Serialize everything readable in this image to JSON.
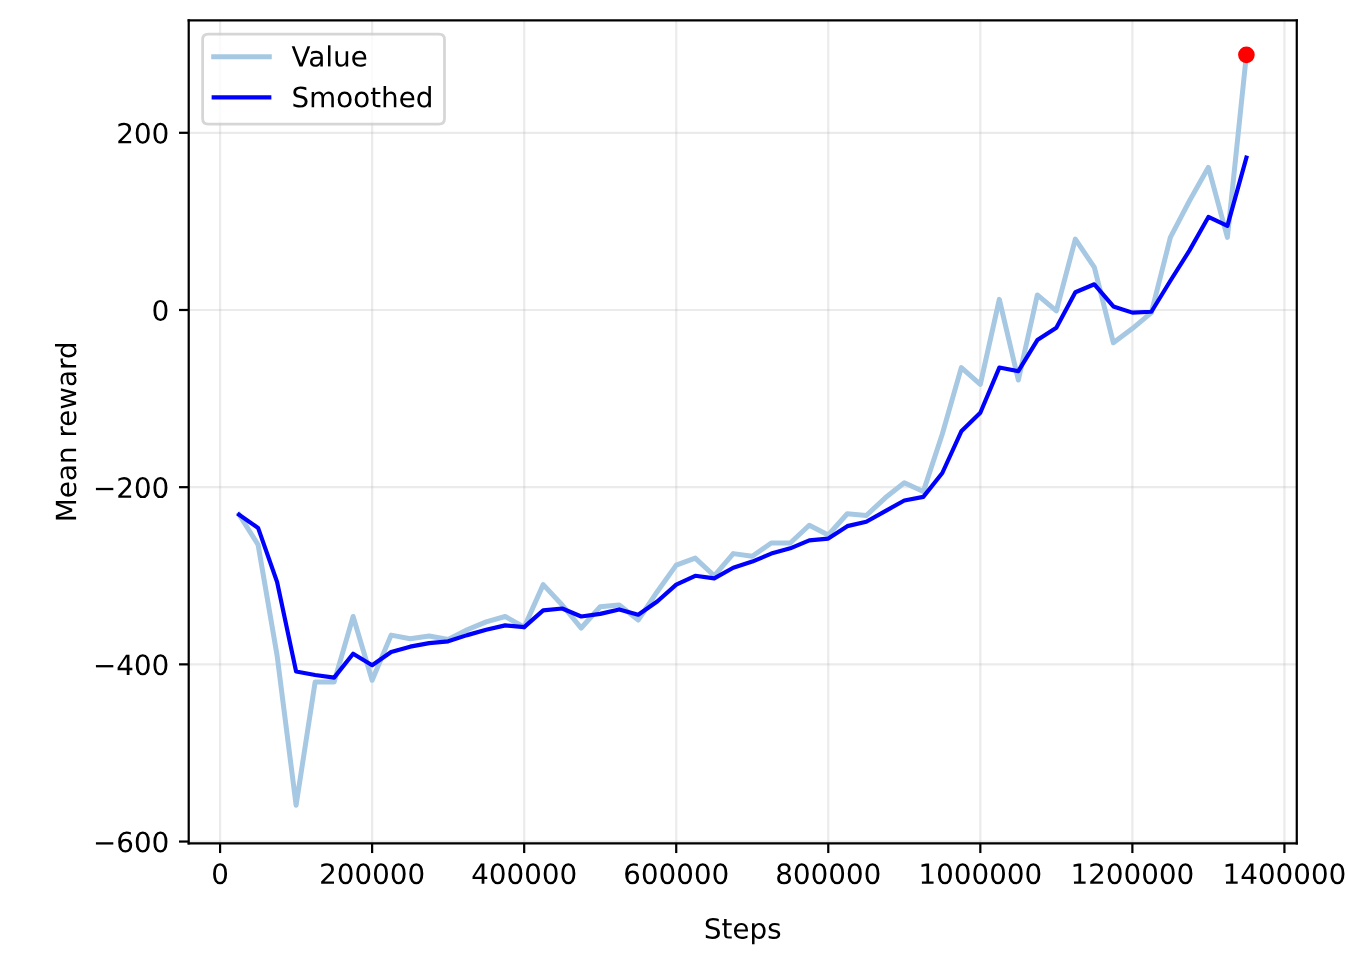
{
  "chart_data": {
    "type": "line",
    "xlabel": "Steps",
    "ylabel": "Mean reward",
    "x": [
      25000,
      50000,
      75000,
      100000,
      125000,
      150000,
      175000,
      200000,
      225000,
      250000,
      275000,
      300000,
      325000,
      350000,
      375000,
      400000,
      425000,
      450000,
      475000,
      500000,
      525000,
      550000,
      575000,
      600000,
      625000,
      650000,
      675000,
      700000,
      725000,
      750000,
      775000,
      800000,
      825000,
      850000,
      875000,
      900000,
      925000,
      950000,
      975000,
      1000000,
      1025000,
      1050000,
      1075000,
      1100000,
      1125000,
      1150000,
      1175000,
      1200000,
      1225000,
      1250000,
      1275000,
      1300000,
      1325000,
      1350000
    ],
    "series": [
      {
        "name": "Value",
        "color": "#a6c8e3",
        "values": [
          -231,
          -265,
          -390,
          -559,
          -420,
          -420,
          -346,
          -418,
          -367,
          -371,
          -368,
          -372,
          -361,
          -352,
          -346,
          -358,
          -310,
          -333,
          -359,
          -335,
          -333,
          -350,
          -318,
          -288,
          -280,
          -300,
          -275,
          -278,
          -263,
          -263,
          -243,
          -254,
          -230,
          -232,
          -212,
          -195,
          -205,
          -140,
          -65,
          -84,
          12,
          -79,
          17,
          -1,
          80,
          48,
          -37,
          -21,
          -3,
          82,
          123,
          161,
          82,
          288
        ]
      },
      {
        "name": "Smoothed",
        "color": "#0000ff",
        "values": [
          -231,
          -246,
          -307,
          -408,
          -412,
          -415,
          -388,
          -401,
          -386,
          -380,
          -376,
          -374,
          -367,
          -361,
          -356,
          -358,
          -339,
          -337,
          -346,
          -343,
          -338,
          -344,
          -329,
          -310,
          -300,
          -303,
          -291,
          -284,
          -275,
          -269,
          -260,
          -258,
          -244,
          -239,
          -227,
          -215,
          -211,
          -184,
          -137,
          -116,
          -65,
          -69,
          -34,
          -20,
          20,
          29,
          4,
          -3,
          -2,
          33,
          67,
          105,
          95,
          172
        ]
      },
      {
        "type": "scatter",
        "color": "#ff0000",
        "marker": "circle",
        "x": [
          1350000
        ],
        "values": [
          288
        ]
      }
    ],
    "xlim": [
      -41250,
      1416250
    ],
    "ylim": [
      -602,
      327
    ],
    "xticks": [
      0,
      200000,
      400000,
      600000,
      800000,
      1000000,
      1200000,
      1400000
    ],
    "yticks": [
      -600,
      -400,
      -200,
      0,
      200
    ],
    "grid": true,
    "legend": "top left"
  }
}
